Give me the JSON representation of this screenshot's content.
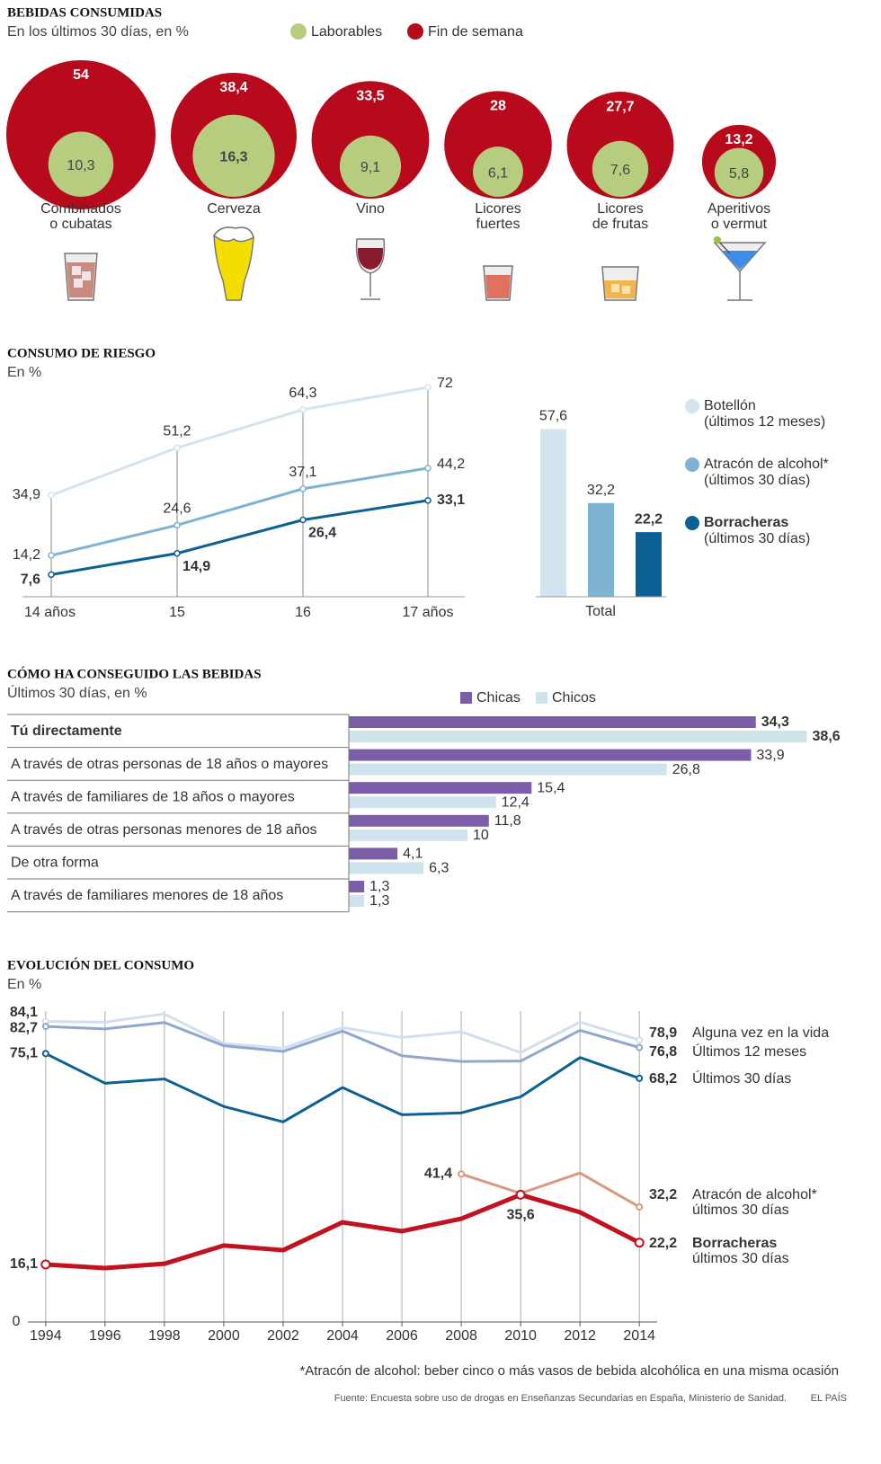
{
  "chart_data": [
    {
      "type": "bubble",
      "title": "BEBIDAS CONSUMIDAS",
      "subtitle": "En los últimos 30 días, en %",
      "categories": [
        [
          "Combinados",
          "o cubatas"
        ],
        [
          "Cerveza"
        ],
        [
          "Vino"
        ],
        [
          "Licores",
          "fuertes"
        ],
        [
          "Licores",
          "de frutas"
        ],
        [
          "Aperitivos",
          "o vermut"
        ]
      ],
      "series": [
        {
          "name": "Laborables",
          "color": "#b6cd7f",
          "values": [
            10.3,
            16.3,
            9.1,
            6.1,
            7.6,
            5.8
          ],
          "value_labels": [
            "10,3",
            "16,3",
            "9,1",
            "6,1",
            "7,6",
            "5,8"
          ]
        },
        {
          "name": "Fin de semana",
          "color": "#b70a1c",
          "values": [
            54,
            38.4,
            33.5,
            28,
            27.7,
            13.2
          ],
          "value_labels": [
            "54",
            "38,4",
            "33,5",
            "28",
            "27,7",
            "13,2"
          ]
        }
      ]
    },
    {
      "type": "line",
      "title": "CONSUMO DE RIESGO",
      "subtitle": "En %",
      "categories": [
        "14 años",
        "15",
        "16",
        "17 años"
      ],
      "total_category": "Total",
      "ylim": [
        0,
        80
      ],
      "series": [
        {
          "name": "Botellón",
          "period": "(últimos 12 meses)",
          "color": "#d3e4ee",
          "values": [
            34.9,
            51.2,
            64.3,
            72
          ],
          "value_labels": [
            "34,9",
            "51,2",
            "64,3",
            "72"
          ],
          "total": 57.6,
          "total_label": "57,6"
        },
        {
          "name": "Atracón de alcohol*",
          "period": "(últimos 30 días)",
          "color": "#7eb3d1",
          "values": [
            14.2,
            24.6,
            37.1,
            44.2
          ],
          "value_labels": [
            "14,2",
            "24,6",
            "37,1",
            "44,2"
          ],
          "total": 32.2,
          "total_label": "32,2"
        },
        {
          "name": "Borracheras",
          "period": "(últimos 30 días)",
          "color": "#0b6194",
          "values": [
            7.6,
            14.9,
            26.4,
            33.1
          ],
          "value_labels": [
            "7,6",
            "14,9",
            "26,4",
            "33,1"
          ],
          "total": 22.2,
          "total_label": "22,2"
        }
      ]
    },
    {
      "type": "hbar",
      "title": "CÓMO HA CONSEGUIDO LAS BEBIDAS",
      "subtitle": "Últimos 30 días, en %",
      "xlim": [
        0,
        40
      ],
      "categories": [
        "Tú directamente",
        "A través de otras personas de 18 años o mayores",
        "A través de familiares de 18 años o mayores",
        "A través de otras personas menores de 18 años",
        "De otra forma",
        "A través de familiares menores de 18 años"
      ],
      "series": [
        {
          "name": "Chicas",
          "color": "#7b5ea7",
          "values": [
            34.3,
            33.9,
            15.4,
            11.8,
            4.1,
            1.3
          ],
          "value_labels": [
            "34,3",
            "33,9",
            "15,4",
            "11,8",
            "4,1",
            "1,3"
          ]
        },
        {
          "name": "Chicos",
          "color": "#cfe3ec",
          "values": [
            38.6,
            26.8,
            12.4,
            10,
            6.3,
            1.3
          ],
          "value_labels": [
            "38,6",
            "26,8",
            "12,4",
            "10",
            "6,3",
            "1,3"
          ]
        }
      ]
    },
    {
      "type": "line",
      "title": "EVOLUCIÓN DEL CONSUMO",
      "subtitle": "En %",
      "x": [
        1994,
        1996,
        1998,
        2000,
        2002,
        2004,
        2006,
        2008,
        2010,
        2012,
        2014
      ],
      "xlim": [
        1993.4,
        2014.6
      ],
      "xticks": [
        1994,
        1996,
        1998,
        2000,
        2002,
        2004,
        2006,
        2008,
        2010,
        2012,
        2014
      ],
      "ylim": [
        0,
        87
      ],
      "yticks": [
        0
      ],
      "grid": true,
      "series": [
        {
          "name": "Alguna vez en la vida",
          "color": "#d3dfee",
          "values": [
            84.1,
            83.9,
            86.2,
            77.9,
            76.6,
            82.4,
            79.6,
            81.2,
            75.4,
            83.9,
            78.9
          ],
          "value_labels": [
            "84,1",
            null,
            null,
            null,
            null,
            null,
            null,
            null,
            null,
            null,
            "78,9"
          ]
        },
        {
          "name": "Últimos 12 meses",
          "color": "#8ea8cf",
          "values": [
            82.7,
            82.0,
            83.8,
            77.3,
            75.7,
            81.4,
            74.5,
            72.9,
            73.0,
            81.6,
            76.8
          ],
          "value_labels": [
            "82,7",
            null,
            null,
            null,
            null,
            null,
            null,
            null,
            null,
            null,
            "76,8"
          ]
        },
        {
          "name": "Últimos 30 días",
          "color": "#0b6194",
          "values": [
            75.1,
            66.8,
            68.0,
            60.3,
            56.0,
            65.6,
            58.0,
            58.5,
            63.0,
            74.0,
            68.2
          ],
          "value_labels": [
            "75,1",
            null,
            null,
            null,
            null,
            null,
            null,
            null,
            null,
            null,
            "68,2"
          ]
        },
        {
          "name": "Atracón de alcohol*",
          "period": "últimos 30 días",
          "color": "#dc9a7c",
          "values": [
            null,
            null,
            null,
            null,
            null,
            null,
            null,
            41.4,
            36.0,
            41.7,
            32.2
          ],
          "value_labels": [
            null,
            null,
            null,
            null,
            null,
            null,
            null,
            "41,4",
            null,
            null,
            "32,2"
          ]
        },
        {
          "name": "Borracheras",
          "period": "últimos 30 días",
          "color": "#c1121f",
          "values": [
            16.1,
            15.1,
            16.3,
            21.4,
            20.1,
            27.9,
            25.4,
            28.9,
            35.6,
            30.7,
            22.2
          ],
          "value_labels": [
            "16,1",
            null,
            null,
            null,
            null,
            null,
            null,
            null,
            "35,6",
            null,
            "22,2"
          ]
        }
      ]
    }
  ],
  "footnote": "*Atracón de alcohol: beber cinco o más vasos de bebida alcohólica en una misma ocasión",
  "source": "Fuente: Encuesta sobre uso de drogas en Enseñanzas Secundarias en España, Ministerio de Sanidad.",
  "credit": "EL PAÍS"
}
